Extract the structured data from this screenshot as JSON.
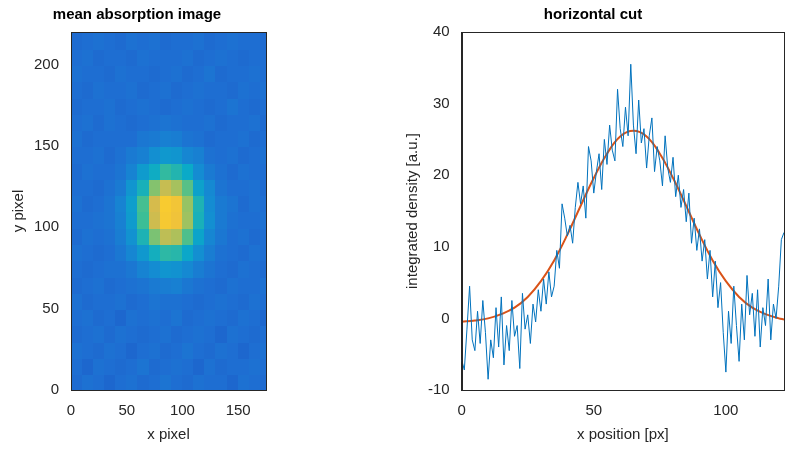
{
  "chart_data": [
    {
      "type": "heatmap",
      "title": "mean absorption image",
      "x_label": "x pixel",
      "y_label": "y pixel",
      "xlim": [
        0,
        175
      ],
      "ylim": [
        0,
        220
      ],
      "xticks": [
        0,
        50,
        100,
        150
      ],
      "yticks": [
        0,
        50,
        100,
        150,
        200
      ],
      "x_edges": [
        0,
        10,
        20,
        30,
        40,
        50,
        60,
        70,
        80,
        90,
        100,
        110,
        120,
        130,
        140,
        150,
        160,
        170,
        175
      ],
      "y_edges": [
        0,
        10,
        20,
        30,
        40,
        50,
        60,
        70,
        80,
        90,
        100,
        110,
        120,
        130,
        140,
        150,
        160,
        170,
        180,
        190,
        200,
        210,
        220
      ],
      "color_range": [
        0,
        1
      ],
      "cells": [
        [
          0.19,
          0.21,
          0.2,
          0.18,
          0.2,
          0.21,
          0.19,
          0.2,
          0.22,
          0.2,
          0.19,
          0.21,
          0.2,
          0.2,
          0.18,
          0.21,
          0.2,
          0.19
        ],
        [
          0.2,
          0.18,
          0.21,
          0.2,
          0.19,
          0.2,
          0.22,
          0.19,
          0.2,
          0.21,
          0.2,
          0.18,
          0.21,
          0.19,
          0.2,
          0.2,
          0.21,
          0.2
        ],
        [
          0.21,
          0.2,
          0.19,
          0.21,
          0.2,
          0.18,
          0.2,
          0.21,
          0.19,
          0.2,
          0.22,
          0.2,
          0.19,
          0.21,
          0.2,
          0.18,
          0.2,
          0.21
        ],
        [
          0.19,
          0.2,
          0.21,
          0.19,
          0.21,
          0.2,
          0.19,
          0.2,
          0.21,
          0.19,
          0.2,
          0.21,
          0.2,
          0.18,
          0.21,
          0.2,
          0.19,
          0.2
        ],
        [
          0.2,
          0.21,
          0.19,
          0.2,
          0.18,
          0.21,
          0.2,
          0.21,
          0.2,
          0.22,
          0.19,
          0.2,
          0.21,
          0.2,
          0.19,
          0.21,
          0.2,
          0.18
        ],
        [
          0.21,
          0.19,
          0.2,
          0.2,
          0.21,
          0.19,
          0.2,
          0.22,
          0.21,
          0.21,
          0.2,
          0.19,
          0.2,
          0.21,
          0.2,
          0.19,
          0.21,
          0.2
        ],
        [
          0.19,
          0.2,
          0.21,
          0.19,
          0.2,
          0.21,
          0.22,
          0.24,
          0.25,
          0.26,
          0.23,
          0.21,
          0.2,
          0.19,
          0.21,
          0.2,
          0.2,
          0.21
        ],
        [
          0.2,
          0.19,
          0.2,
          0.21,
          0.21,
          0.23,
          0.27,
          0.3,
          0.33,
          0.32,
          0.29,
          0.25,
          0.22,
          0.2,
          0.19,
          0.21,
          0.2,
          0.19
        ],
        [
          0.21,
          0.2,
          0.19,
          0.2,
          0.23,
          0.28,
          0.34,
          0.42,
          0.47,
          0.46,
          0.39,
          0.31,
          0.25,
          0.21,
          0.2,
          0.19,
          0.21,
          0.2
        ],
        [
          0.19,
          0.21,
          0.2,
          0.21,
          0.25,
          0.32,
          0.44,
          0.57,
          0.65,
          0.63,
          0.52,
          0.38,
          0.28,
          0.23,
          0.2,
          0.21,
          0.19,
          0.2
        ],
        [
          0.2,
          0.2,
          0.21,
          0.22,
          0.26,
          0.35,
          0.5,
          0.67,
          0.78,
          0.75,
          0.61,
          0.43,
          0.31,
          0.24,
          0.21,
          0.2,
          0.2,
          0.21
        ],
        [
          0.21,
          0.19,
          0.2,
          0.22,
          0.27,
          0.36,
          0.51,
          0.68,
          0.79,
          0.76,
          0.6,
          0.44,
          0.3,
          0.24,
          0.22,
          0.19,
          0.21,
          0.2
        ],
        [
          0.2,
          0.2,
          0.19,
          0.21,
          0.24,
          0.33,
          0.43,
          0.58,
          0.66,
          0.62,
          0.53,
          0.37,
          0.29,
          0.22,
          0.2,
          0.2,
          0.21,
          0.19
        ],
        [
          0.19,
          0.21,
          0.2,
          0.2,
          0.22,
          0.27,
          0.35,
          0.41,
          0.48,
          0.45,
          0.4,
          0.3,
          0.24,
          0.21,
          0.19,
          0.21,
          0.2,
          0.2
        ],
        [
          0.2,
          0.2,
          0.21,
          0.19,
          0.21,
          0.24,
          0.26,
          0.31,
          0.34,
          0.33,
          0.28,
          0.26,
          0.21,
          0.2,
          0.21,
          0.19,
          0.2,
          0.21
        ],
        [
          0.21,
          0.19,
          0.2,
          0.2,
          0.2,
          0.2,
          0.23,
          0.24,
          0.26,
          0.25,
          0.22,
          0.21,
          0.19,
          0.2,
          0.2,
          0.21,
          0.19,
          0.2
        ],
        [
          0.2,
          0.21,
          0.19,
          0.21,
          0.2,
          0.19,
          0.2,
          0.21,
          0.22,
          0.21,
          0.2,
          0.2,
          0.21,
          0.19,
          0.2,
          0.2,
          0.21,
          0.19
        ],
        [
          0.19,
          0.2,
          0.2,
          0.21,
          0.19,
          0.2,
          0.21,
          0.2,
          0.19,
          0.2,
          0.21,
          0.2,
          0.19,
          0.2,
          0.22,
          0.2,
          0.19,
          0.2
        ],
        [
          0.2,
          0.19,
          0.21,
          0.2,
          0.2,
          0.21,
          0.19,
          0.2,
          0.21,
          0.19,
          0.2,
          0.21,
          0.2,
          0.2,
          0.19,
          0.21,
          0.2,
          0.21
        ],
        [
          0.21,
          0.2,
          0.2,
          0.19,
          0.21,
          0.2,
          0.2,
          0.19,
          0.2,
          0.21,
          0.19,
          0.2,
          0.22,
          0.19,
          0.2,
          0.2,
          0.21,
          0.2
        ],
        [
          0.2,
          0.21,
          0.19,
          0.2,
          0.2,
          0.19,
          0.21,
          0.2,
          0.2,
          0.2,
          0.21,
          0.19,
          0.2,
          0.21,
          0.2,
          0.19,
          0.2,
          0.2
        ],
        [
          0.19,
          0.2,
          0.21,
          0.2,
          0.19,
          0.21,
          0.2,
          0.21,
          0.19,
          0.2,
          0.2,
          0.21,
          0.19,
          0.2,
          0.21,
          0.2,
          0.2,
          0.19
        ]
      ]
    },
    {
      "type": "line",
      "title": "horizontal cut",
      "x_label": "x position [px]",
      "y_label": "integrated density [a.u.]",
      "xlim": [
        0,
        122
      ],
      "ylim": [
        -10,
        40
      ],
      "xticks": [
        0,
        50,
        100
      ],
      "yticks": [
        -10,
        0,
        10,
        20,
        30,
        40
      ],
      "series": [
        {
          "color": "#0072bd",
          "x": [
            0,
            1,
            2,
            3,
            4,
            5,
            6,
            7,
            8,
            9,
            10,
            11,
            12,
            13,
            14,
            15,
            16,
            17,
            18,
            19,
            20,
            21,
            22,
            23,
            24,
            25,
            26,
            27,
            28,
            29,
            30,
            31,
            32,
            33,
            34,
            35,
            36,
            37,
            38,
            39,
            40,
            41,
            42,
            43,
            44,
            45,
            46,
            47,
            48,
            49,
            50,
            51,
            52,
            53,
            54,
            55,
            56,
            57,
            58,
            59,
            60,
            61,
            62,
            63,
            64,
            65,
            66,
            67,
            68,
            69,
            70,
            71,
            72,
            73,
            74,
            75,
            76,
            77,
            78,
            79,
            80,
            81,
            82,
            83,
            84,
            85,
            86,
            87,
            88,
            89,
            90,
            91,
            92,
            93,
            94,
            95,
            96,
            97,
            98,
            99,
            100,
            101,
            102,
            103,
            104,
            105,
            106,
            107,
            108,
            109,
            110,
            111,
            112,
            113,
            114,
            115,
            116,
            117,
            118,
            119,
            120,
            121,
            122
          ],
          "values": [
            -5.8,
            -7.2,
            -1.5,
            4.5,
            -3.0,
            -4.5,
            1.0,
            -3.5,
            2.5,
            -2.0,
            -8.5,
            -3.0,
            -5.5,
            1.5,
            -4.0,
            3.0,
            -6.5,
            -1.0,
            -4.5,
            2.5,
            -2.5,
            -1.0,
            -7.0,
            3.5,
            -1.5,
            0.5,
            -3.5,
            2.0,
            -0.5,
            4.0,
            1.0,
            5.5,
            2.0,
            6.5,
            3.0,
            4.5,
            9.5,
            7.0,
            16.0,
            14.0,
            11.5,
            13.0,
            10.5,
            15.5,
            19.0,
            16.0,
            18.5,
            14.0,
            24.0,
            22.0,
            17.5,
            20.5,
            23.0,
            18.0,
            25.0,
            21.5,
            27.0,
            23.5,
            22.0,
            32.0,
            26.5,
            24.0,
            29.5,
            25.5,
            35.5,
            27.0,
            23.0,
            30.5,
            24.5,
            26.5,
            21.0,
            25.5,
            28.0,
            20.5,
            24.0,
            22.0,
            18.5,
            25.5,
            21.0,
            19.0,
            22.5,
            17.0,
            20.0,
            15.5,
            18.0,
            13.5,
            17.5,
            10.5,
            14.0,
            9.5,
            12.5,
            8.0,
            11.0,
            5.5,
            9.5,
            3.0,
            8.0,
            1.5,
            5.0,
            -2.0,
            -7.5,
            1.0,
            -3.5,
            4.5,
            -1.0,
            -6.0,
            2.0,
            -3.0,
            6.0,
            0.5,
            3.5,
            -2.5,
            4.0,
            -4.0,
            1.5,
            -1.0,
            5.5,
            -3.0,
            2.0,
            0.0,
            4.5,
            11.0,
            12.0
          ]
        },
        {
          "color": "#d95319",
          "x": [
            0,
            5,
            10,
            15,
            20,
            25,
            30,
            35,
            40,
            45,
            50,
            55,
            60,
            65,
            70,
            75,
            80,
            85,
            90,
            95,
            100,
            105,
            110,
            115,
            120,
            122
          ],
          "values": [
            -0.47,
            -0.3,
            0.0,
            0.6,
            1.5,
            3.0,
            5.2,
            8.1,
            11.7,
            15.7,
            19.6,
            23.0,
            25.4,
            26.2,
            25.4,
            23.0,
            19.6,
            15.7,
            11.7,
            8.1,
            5.2,
            3.0,
            1.5,
            0.6,
            0.0,
            -0.14
          ]
        }
      ]
    }
  ]
}
